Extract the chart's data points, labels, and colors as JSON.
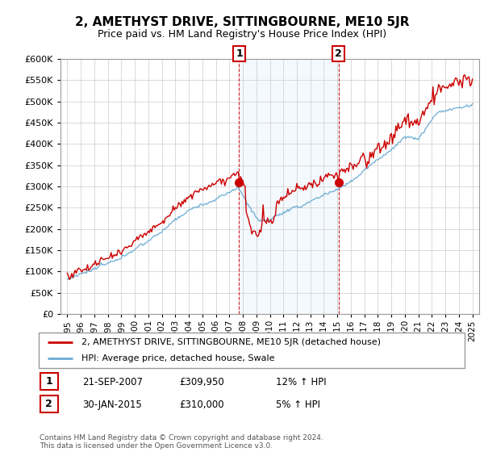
{
  "title": "2, AMETHYST DRIVE, SITTINGBOURNE, ME10 5JR",
  "subtitle": "Price paid vs. HM Land Registry's House Price Index (HPI)",
  "legend_line1": "2, AMETHYST DRIVE, SITTINGBOURNE, ME10 5JR (detached house)",
  "legend_line2": "HPI: Average price, detached house, Swale",
  "transaction1_label": "1",
  "transaction1_date": "21-SEP-2007",
  "transaction1_price": "£309,950",
  "transaction1_hpi": "12% ↑ HPI",
  "transaction2_label": "2",
  "transaction2_date": "30-JAN-2015",
  "transaction2_price": "£310,000",
  "transaction2_hpi": "5% ↑ HPI",
  "footer": "Contains HM Land Registry data © Crown copyright and database right 2024.\nThis data is licensed under the Open Government Licence v3.0.",
  "hpi_color": "#6aaad4",
  "price_color": "#CC0000",
  "marker1_x": 2007.73,
  "marker1_y": 309950,
  "marker2_x": 2015.08,
  "marker2_y": 310000,
  "ylim": [
    0,
    600000
  ],
  "xlim_start": 1994.5,
  "xlim_end": 2025.5,
  "shaded_region_start": 2007.73,
  "shaded_region_end": 2015.08,
  "yticks": [
    0,
    50000,
    100000,
    150000,
    200000,
    250000,
    300000,
    350000,
    400000,
    450000,
    500000,
    550000,
    600000
  ]
}
